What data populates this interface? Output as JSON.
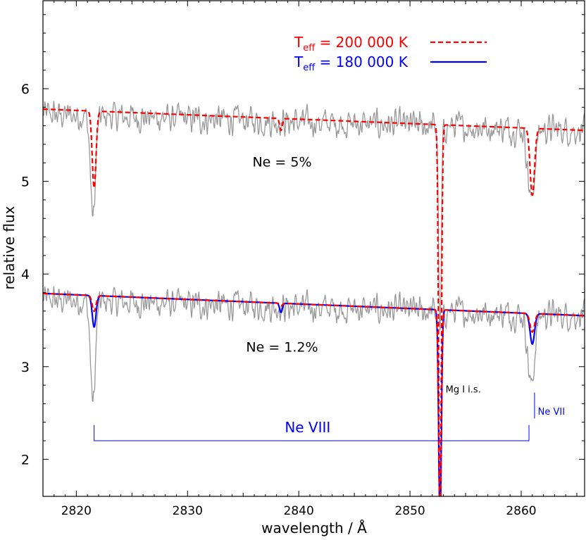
{
  "chart_data": {
    "type": "line",
    "title": "",
    "xlabel": "wavelength / Å",
    "ylabel": "relative flux",
    "xlim": [
      2817,
      2865.7
    ],
    "ylim": [
      1.6,
      6.95
    ],
    "x_ticks": [
      2820,
      2830,
      2840,
      2850,
      2860
    ],
    "y_ticks": [
      2,
      3,
      4,
      5,
      6
    ],
    "grid": false,
    "legend_position": "top-right",
    "legend": [
      {
        "label_main": "T",
        "label_sub": "eff",
        "label_rest": " = 200 000 K",
        "color": "#ff0000",
        "style": "dashed"
      },
      {
        "label_main": "T",
        "label_sub": "eff",
        "label_rest": " = 180 000 K",
        "color": "#0000ff",
        "style": "solid"
      }
    ],
    "panels": [
      {
        "label": "Ne = 5%",
        "label_x": 2838.5,
        "label_y": 5.16,
        "offset": 2.0
      },
      {
        "label": "Ne = 1.2%",
        "label_x": 2838.5,
        "label_y": 3.16,
        "offset": 0.0
      }
    ],
    "series": [
      {
        "name": "T_eff = 200 000 K",
        "color": "#ff0000",
        "style": "dashed",
        "panel": "Ne = 5%",
        "continuum": [
          [
            2817,
            5.78
          ],
          [
            2865.7,
            5.55
          ]
        ],
        "lines": [
          {
            "center": 2821.6,
            "depth": 0.83,
            "width": 0.17
          },
          {
            "center": 2838.4,
            "depth": 0.13,
            "width": 0.12
          },
          {
            "center": 2852.7,
            "depth": 4.3,
            "width": 0.12
          },
          {
            "center": 2861.0,
            "depth": 0.72,
            "width": 0.2
          }
        ]
      },
      {
        "name": "T_eff = 180 000 K",
        "color": "#0000ff",
        "style": "solid",
        "panel": "Ne = 1.2%",
        "continuum": [
          [
            2817,
            3.79
          ],
          [
            2865.7,
            3.55
          ]
        ],
        "lines": [
          {
            "center": 2821.6,
            "depth": 0.34,
            "width": 0.17
          },
          {
            "center": 2838.4,
            "depth": 0.1,
            "width": 0.12
          },
          {
            "center": 2852.7,
            "depth": 2.3,
            "width": 0.12
          },
          {
            "center": 2861.0,
            "depth": 0.33,
            "width": 0.2
          }
        ]
      },
      {
        "name": "T_eff = 200 000 K",
        "color": "#ff0000",
        "style": "dashed",
        "panel": "Ne = 1.2%",
        "continuum": [
          [
            2817,
            3.79
          ],
          [
            2865.7,
            3.55
          ]
        ],
        "lines": [
          {
            "center": 2821.6,
            "depth": 0.17,
            "width": 0.17
          },
          {
            "center": 2838.4,
            "depth": 0.03,
            "width": 0.12
          },
          {
            "center": 2852.7,
            "depth": 2.3,
            "width": 0.12
          },
          {
            "center": 2861.0,
            "depth": 0.2,
            "width": 0.2
          }
        ]
      }
    ],
    "observed": {
      "color": "#999999",
      "offsets": [
        2.0,
        0.0
      ],
      "base": [
        [
          2817,
          3.72
        ],
        [
          2865.7,
          3.55
        ]
      ],
      "noise_amplitude": 0.1,
      "lines": [
        {
          "center": 2821.5,
          "depth": 1.1,
          "width": 0.22
        },
        {
          "center": 2852.7,
          "depth": 2.3,
          "width": 0.12
        },
        {
          "center": 2860.9,
          "depth": 0.78,
          "width": 0.3
        }
      ]
    },
    "annotations": [
      {
        "name": "mg-is-label",
        "text": "Mg I i.s.",
        "x": 2853.2,
        "y": 2.72,
        "color": "#000000"
      },
      {
        "name": "ne7-label",
        "text": "Ne VII",
        "x": 2861.5,
        "y": 2.48,
        "color": "#0000ff",
        "tick_x": 2861.2,
        "tick_y": [
          2.44,
          2.72
        ]
      },
      {
        "name": "ne8-label",
        "text": "Ne VIII",
        "x": 2840.8,
        "y": 2.29,
        "color": "#0000ff",
        "bracket": {
          "x1": 2821.6,
          "x2": 2860.7,
          "y": 2.2,
          "y_top": 2.37
        }
      }
    ]
  }
}
